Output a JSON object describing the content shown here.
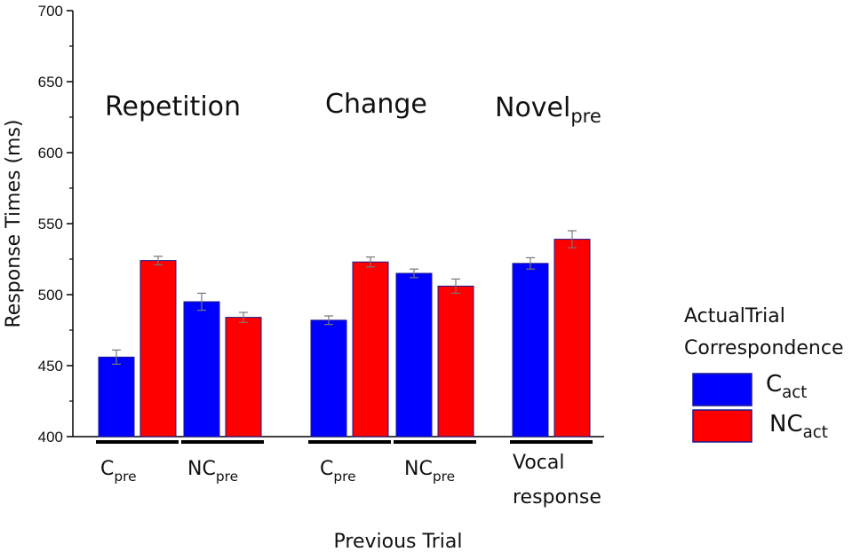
{
  "chart_data": {
    "type": "bar",
    "ylabel": "Response Times (ms)",
    "xlabel": "Previous Trial",
    "ylim": [
      400,
      700
    ],
    "yticks": [
      400,
      450,
      500,
      550,
      600,
      650,
      700
    ],
    "grid": false,
    "groups": [
      {
        "title": "Repetition",
        "title_sub": "",
        "subgroups": [
          {
            "label": "C",
            "label_sub": "pre",
            "label_line2": "",
            "values": [
              456,
              524
            ],
            "errors": [
              5,
              3
            ]
          },
          {
            "label": "NC",
            "label_sub": "pre",
            "label_line2": "",
            "values": [
              495,
              484
            ],
            "errors": [
              6,
              3.5
            ]
          }
        ]
      },
      {
        "title": "Change",
        "title_sub": "",
        "subgroups": [
          {
            "label": "C",
            "label_sub": "pre",
            "label_line2": "",
            "values": [
              482,
              523
            ],
            "errors": [
              3,
              3.5
            ]
          },
          {
            "label": "NC",
            "label_sub": "pre",
            "label_line2": "",
            "values": [
              515,
              506
            ],
            "errors": [
              3,
              5
            ]
          }
        ]
      },
      {
        "title": "Novel",
        "title_sub": "pre",
        "subgroups": [
          {
            "label": "Vocal",
            "label_sub": "",
            "label_line2": "response",
            "values": [
              522,
              539
            ],
            "errors": [
              4,
              6
            ]
          }
        ]
      }
    ],
    "legend": {
      "title_line1": "ActualTrial",
      "title_line2": "Correspondence",
      "placement": "right",
      "entries": [
        {
          "label": "C",
          "label_sub": "act",
          "color": "#0000ff"
        },
        {
          "label": "NC",
          "label_sub": "act",
          "color": "#ff0000"
        }
      ]
    },
    "bar_edge_color": "#1a1a8c"
  }
}
